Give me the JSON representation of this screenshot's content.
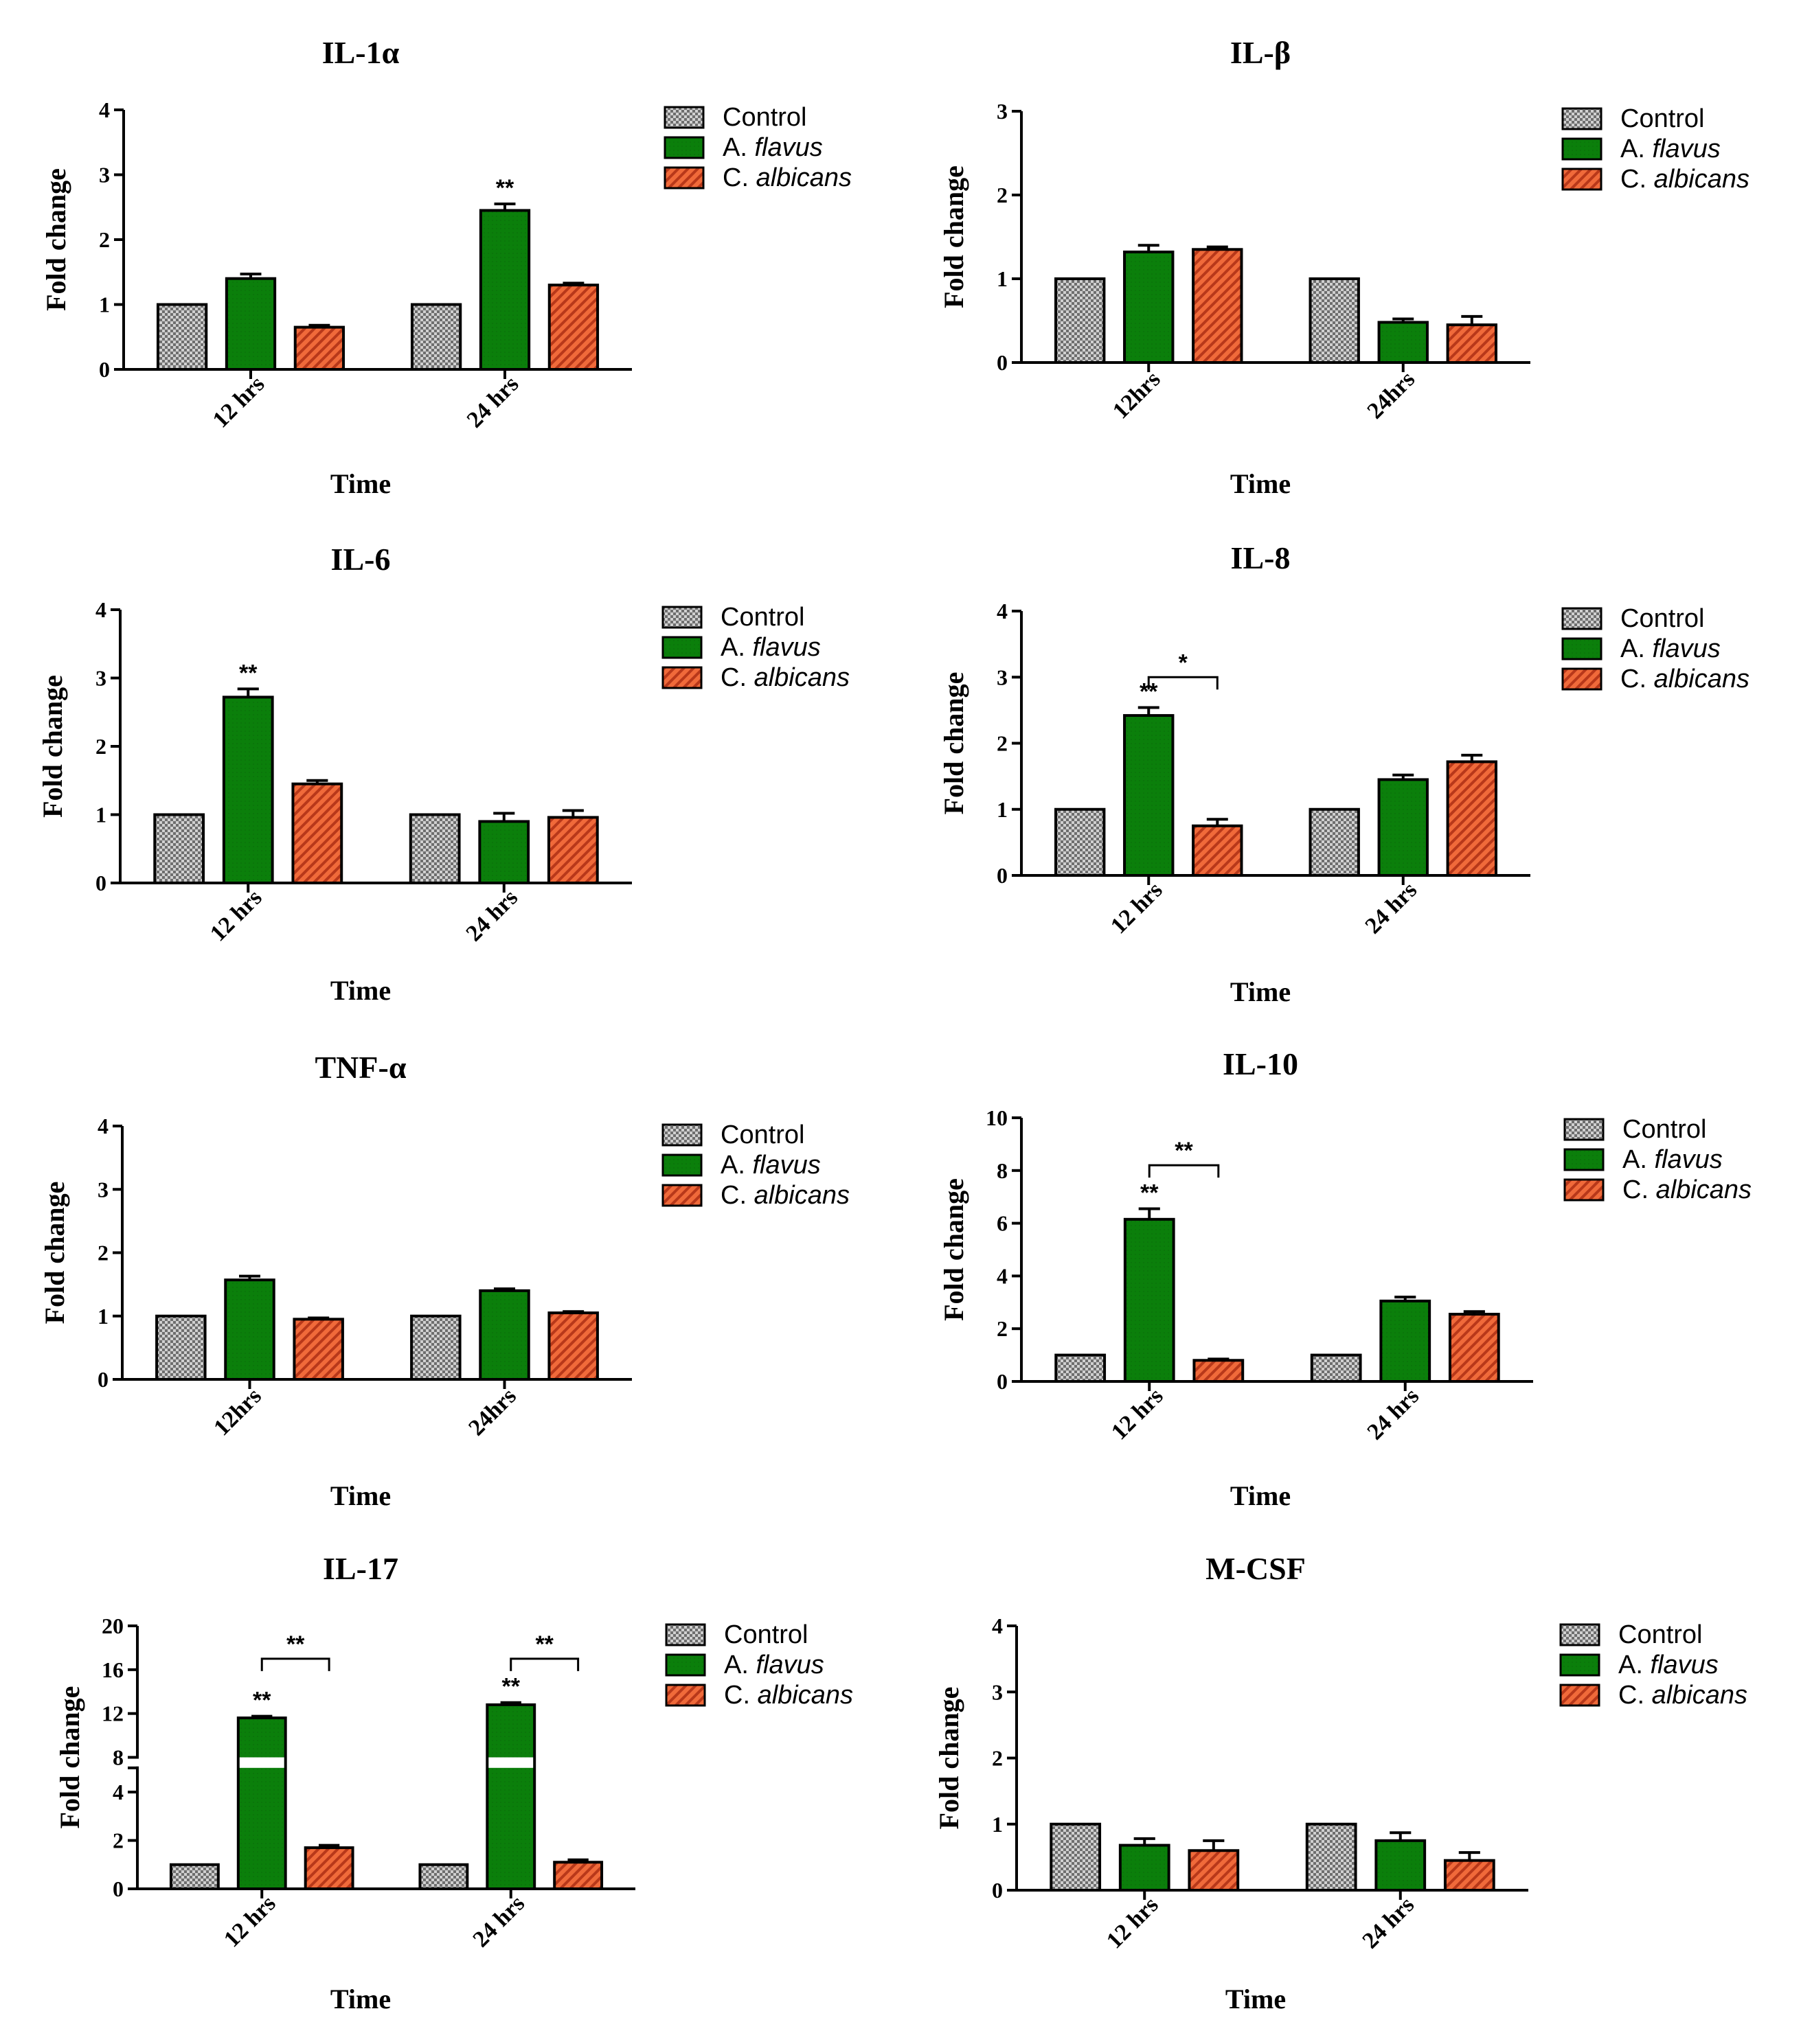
{
  "colors": {
    "control": "#a8a8a8",
    "a_flavus": "#087808",
    "c_albicans": "#e0502a",
    "axis": "#000000"
  },
  "legend": {
    "control": "Control",
    "a_flavus_prefix": "A. ",
    "a_flavus_species": "flavus",
    "c_albicans_prefix": "C. ",
    "c_albicans_species": "albicans"
  },
  "chart_data": [
    {
      "type": "bar",
      "title": "IL-1α",
      "xlabel": "Time",
      "ylabel": "Fold change",
      "categories": [
        "12 hrs",
        "24 hrs"
      ],
      "ylim": [
        0,
        4
      ],
      "yticks": [
        0,
        1,
        2,
        3,
        4
      ],
      "series": [
        {
          "name": "Control",
          "values": [
            1.0,
            1.0
          ],
          "errors": [
            0,
            0
          ]
        },
        {
          "name": "A. flavus",
          "values": [
            1.4,
            2.45
          ],
          "errors": [
            0.07,
            0.1
          ]
        },
        {
          "name": "C. albicans",
          "values": [
            0.65,
            1.3
          ],
          "errors": [
            0.03,
            0.03
          ]
        }
      ],
      "annotations": [
        {
          "series": 1,
          "category": 1,
          "text": "**"
        }
      ],
      "brackets": []
    },
    {
      "type": "bar",
      "title": "IL-β",
      "xlabel": "Time",
      "ylabel": "Fold change",
      "categories": [
        "12hrs",
        "24hrs"
      ],
      "ylim": [
        0,
        3
      ],
      "yticks": [
        0,
        1,
        2,
        3
      ],
      "series": [
        {
          "name": "Control",
          "values": [
            1.0,
            1.0
          ],
          "errors": [
            0,
            0
          ]
        },
        {
          "name": "A. flavus",
          "values": [
            1.32,
            0.48
          ],
          "errors": [
            0.08,
            0.04
          ]
        },
        {
          "name": "C. albicans",
          "values": [
            1.35,
            0.45
          ],
          "errors": [
            0.03,
            0.1
          ]
        }
      ],
      "annotations": [],
      "brackets": []
    },
    {
      "type": "bar",
      "title": "IL-6",
      "xlabel": "Time",
      "ylabel": "Fold change",
      "categories": [
        "12 hrs",
        "24 hrs"
      ],
      "ylim": [
        0,
        4
      ],
      "yticks": [
        0,
        1,
        2,
        3,
        4
      ],
      "series": [
        {
          "name": "Control",
          "values": [
            1.0,
            1.0
          ],
          "errors": [
            0,
            0
          ]
        },
        {
          "name": "A. flavus",
          "values": [
            2.72,
            0.9
          ],
          "errors": [
            0.12,
            0.12
          ]
        },
        {
          "name": "C. albicans",
          "values": [
            1.45,
            0.96
          ],
          "errors": [
            0.05,
            0.1
          ]
        }
      ],
      "annotations": [
        {
          "series": 1,
          "category": 0,
          "text": "**"
        }
      ],
      "brackets": []
    },
    {
      "type": "bar",
      "title": "IL-8",
      "xlabel": "Time",
      "ylabel": "Fold change",
      "categories": [
        "12 hrs",
        "24 hrs"
      ],
      "ylim": [
        0,
        4
      ],
      "yticks": [
        0,
        1,
        2,
        3,
        4
      ],
      "series": [
        {
          "name": "Control",
          "values": [
            1.0,
            1.0
          ],
          "errors": [
            0,
            0
          ]
        },
        {
          "name": "A. flavus",
          "values": [
            2.42,
            1.45
          ],
          "errors": [
            0.12,
            0.07
          ]
        },
        {
          "name": "C. albicans",
          "values": [
            0.75,
            1.72
          ],
          "errors": [
            0.1,
            0.1
          ]
        }
      ],
      "annotations": [
        {
          "series": 1,
          "category": 0,
          "text": "**"
        }
      ],
      "brackets": [
        {
          "category": 0,
          "from_series": 1,
          "to_series": 2,
          "level": 3.0,
          "text": "*"
        }
      ]
    },
    {
      "type": "bar",
      "title": "TNF-α",
      "xlabel": "Time",
      "ylabel": "Fold change",
      "categories": [
        "12hrs",
        "24hrs"
      ],
      "ylim": [
        0,
        4
      ],
      "yticks": [
        0,
        1,
        2,
        3,
        4
      ],
      "series": [
        {
          "name": "Control",
          "values": [
            1.0,
            1.0
          ],
          "errors": [
            0,
            0
          ]
        },
        {
          "name": "A. flavus",
          "values": [
            1.57,
            1.4
          ],
          "errors": [
            0.06,
            0.03
          ]
        },
        {
          "name": "C. albicans",
          "values": [
            0.95,
            1.05
          ],
          "errors": [
            0.02,
            0.02
          ]
        }
      ],
      "annotations": [],
      "brackets": []
    },
    {
      "type": "bar",
      "title": "IL-10",
      "xlabel": "Time",
      "ylabel": "Fold change",
      "categories": [
        "12 hrs",
        "24 hrs"
      ],
      "ylim": [
        0,
        10
      ],
      "yticks": [
        0,
        2,
        4,
        6,
        8,
        10
      ],
      "series": [
        {
          "name": "Control",
          "values": [
            1.0,
            1.0
          ],
          "errors": [
            0,
            0
          ]
        },
        {
          "name": "A. flavus",
          "values": [
            6.15,
            3.05
          ],
          "errors": [
            0.4,
            0.15
          ]
        },
        {
          "name": "C. albicans",
          "values": [
            0.8,
            2.55
          ],
          "errors": [
            0.05,
            0.1
          ]
        }
      ],
      "annotations": [
        {
          "series": 1,
          "category": 0,
          "text": "**"
        }
      ],
      "brackets": [
        {
          "category": 0,
          "from_series": 1,
          "to_series": 2,
          "level": 8.2,
          "text": "**"
        }
      ]
    },
    {
      "type": "bar",
      "title": "IL-17",
      "xlabel": "Time",
      "ylabel": "Fold change",
      "categories": [
        "12 hrs",
        "24 hrs"
      ],
      "ylim": [
        0,
        20
      ],
      "yticks": [
        0,
        2,
        4,
        8,
        12,
        16,
        20
      ],
      "axis_break": [
        5,
        8
      ],
      "series": [
        {
          "name": "Control",
          "values": [
            1.0,
            1.0
          ],
          "errors": [
            0,
            0
          ]
        },
        {
          "name": "A. flavus",
          "values": [
            11.6,
            12.8
          ],
          "errors": [
            0.15,
            0.2
          ]
        },
        {
          "name": "C. albicans",
          "values": [
            1.7,
            1.1
          ],
          "errors": [
            0.1,
            0.1
          ]
        }
      ],
      "annotations": [
        {
          "series": 1,
          "category": 0,
          "text": "**"
        },
        {
          "series": 1,
          "category": 1,
          "text": "**"
        }
      ],
      "brackets": [
        {
          "category": 0,
          "from_series": 1,
          "to_series": 2,
          "level": 17.0,
          "text": "**"
        },
        {
          "category": 1,
          "from_series": 1,
          "to_series": 2,
          "level": 17.0,
          "text": "**"
        }
      ]
    },
    {
      "type": "bar",
      "title": "M-CSF",
      "xlabel": "Time",
      "ylabel": "Fold change",
      "categories": [
        "12 hrs",
        "24 hrs"
      ],
      "ylim": [
        0,
        4
      ],
      "yticks": [
        0,
        1,
        2,
        3,
        4
      ],
      "series": [
        {
          "name": "Control",
          "values": [
            1.0,
            1.0
          ],
          "errors": [
            0,
            0
          ]
        },
        {
          "name": "A. flavus",
          "values": [
            0.68,
            0.75
          ],
          "errors": [
            0.1,
            0.12
          ]
        },
        {
          "name": "C. albicans",
          "values": [
            0.6,
            0.45
          ],
          "errors": [
            0.15,
            0.12
          ]
        }
      ],
      "annotations": [],
      "brackets": []
    }
  ]
}
